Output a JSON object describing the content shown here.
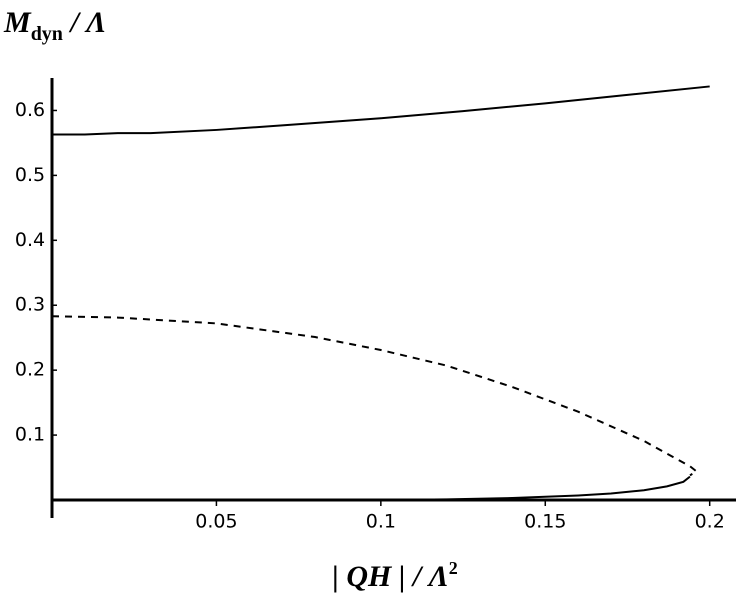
{
  "chart_data": {
    "type": "line",
    "ylabel": {
      "main": "M",
      "sub": "dyn",
      "rest": " / Λ"
    },
    "xlabel": {
      "main": "| QH | / Λ",
      "sup": "2"
    },
    "xlim": [
      0,
      0.208
    ],
    "ylim": [
      0,
      0.65
    ],
    "xticks": [
      0.05,
      0.1,
      0.15,
      0.2
    ],
    "yticks": [
      0.1,
      0.2,
      0.3,
      0.4,
      0.5,
      0.6
    ],
    "series": [
      {
        "color": "#000000",
        "dash": false,
        "x": [
          0,
          0.01,
          0.02,
          0.03,
          0.05,
          0.07,
          0.1,
          0.125,
          0.15,
          0.175,
          0.2
        ],
        "values": [
          0.563,
          0.563,
          0.565,
          0.565,
          0.57,
          0.577,
          0.588,
          0.599,
          0.611,
          0.624,
          0.637
        ]
      },
      {
        "color": "#000000",
        "dash": true,
        "x": [
          0,
          0.02,
          0.05,
          0.08,
          0.1,
          0.12,
          0.14,
          0.16,
          0.18,
          0.19,
          0.194,
          0.196,
          0.194
        ],
        "values": [
          0.283,
          0.281,
          0.272,
          0.251,
          0.231,
          0.207,
          0.174,
          0.136,
          0.091,
          0.063,
          0.052,
          0.044,
          0.038
        ]
      },
      {
        "color": "#000000",
        "dash": false,
        "x": [
          0,
          0.1,
          0.12,
          0.14,
          0.16,
          0.17,
          0.18,
          0.187,
          0.192,
          0.194
        ],
        "values": [
          0,
          0,
          0.001,
          0.003,
          0.007,
          0.01,
          0.015,
          0.021,
          0.028,
          0.036
        ]
      }
    ]
  }
}
